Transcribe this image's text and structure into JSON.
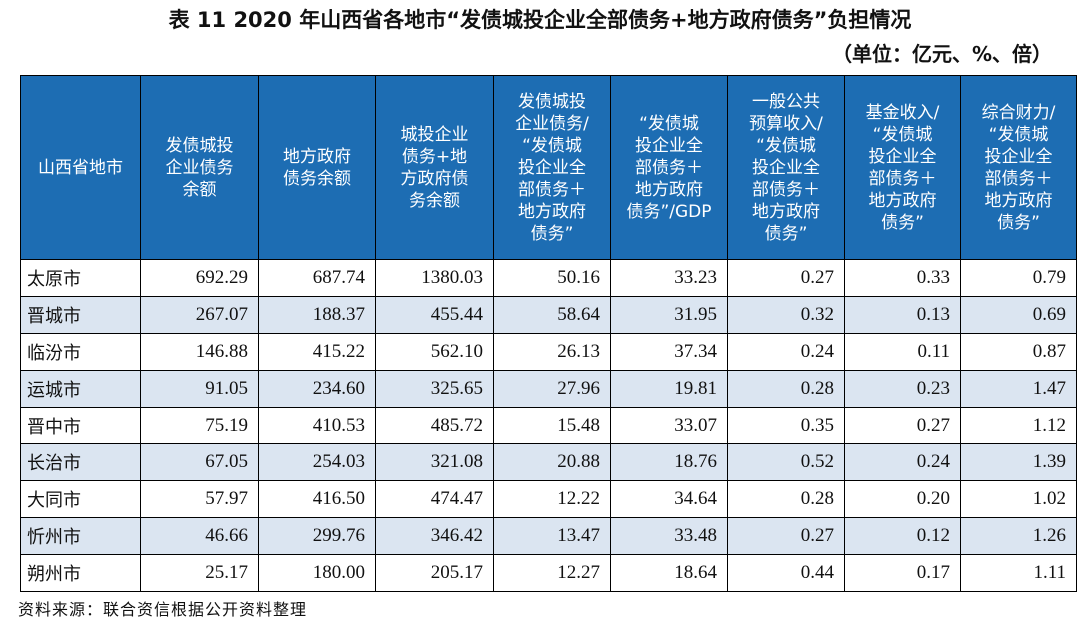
{
  "header": {
    "title": "表 11   2020 年山西省各地市“发债城投企业全部债务+地方政府债务”负担情况",
    "unit": "（单位：亿元、%、倍）"
  },
  "table": {
    "columns": [
      [
        "山西省地市"
      ],
      [
        "发债城投",
        "企业债务",
        "余额"
      ],
      [
        "地方政府",
        "债务余额"
      ],
      [
        "城投企业",
        "债务+地",
        "方政府债",
        "务余额"
      ],
      [
        "发债城投",
        "企业债务/",
        "“发债城",
        "投企业全",
        "部债务＋",
        "地方政府",
        "债务”"
      ],
      [
        "“发债城",
        "投企业全",
        "部债务＋",
        "地方政府",
        "债务”/GDP"
      ],
      [
        "一般公共",
        "预算收入/",
        "“发债城",
        "投企业全",
        "部债务＋",
        "地方政府",
        "债务”"
      ],
      [
        "基金收入/",
        "“发债城",
        "投企业全",
        "部债务＋",
        "地方政府",
        "债务”"
      ],
      [
        "综合财力/",
        "“发债城",
        "投企业全",
        "部债务＋",
        "地方政府",
        "债务”"
      ]
    ],
    "rows": [
      [
        "太原市",
        "692.29",
        "687.74",
        "1380.03",
        "50.16",
        "33.23",
        "0.27",
        "0.33",
        "0.79"
      ],
      [
        "晋城市",
        "267.07",
        "188.37",
        "455.44",
        "58.64",
        "31.95",
        "0.32",
        "0.13",
        "0.69"
      ],
      [
        "临汾市",
        "146.88",
        "415.22",
        "562.10",
        "26.13",
        "37.34",
        "0.24",
        "0.11",
        "0.87"
      ],
      [
        "运城市",
        "91.05",
        "234.60",
        "325.65",
        "27.96",
        "19.81",
        "0.28",
        "0.23",
        "1.47"
      ],
      [
        "晋中市",
        "75.19",
        "410.53",
        "485.72",
        "15.48",
        "33.07",
        "0.35",
        "0.27",
        "1.12"
      ],
      [
        "长治市",
        "67.05",
        "254.03",
        "321.08",
        "20.88",
        "18.76",
        "0.52",
        "0.24",
        "1.39"
      ],
      [
        "大同市",
        "57.97",
        "416.50",
        "474.47",
        "12.22",
        "34.64",
        "0.28",
        "0.20",
        "1.02"
      ],
      [
        "忻州市",
        "46.66",
        "299.76",
        "346.42",
        "13.47",
        "33.48",
        "0.27",
        "0.12",
        "1.26"
      ],
      [
        "朔州市",
        "25.17",
        "180.00",
        "205.17",
        "12.27",
        "18.64",
        "0.44",
        "0.17",
        "1.11"
      ]
    ]
  },
  "footer": {
    "source": "资料来源：联合资信根据公开资料整理"
  }
}
